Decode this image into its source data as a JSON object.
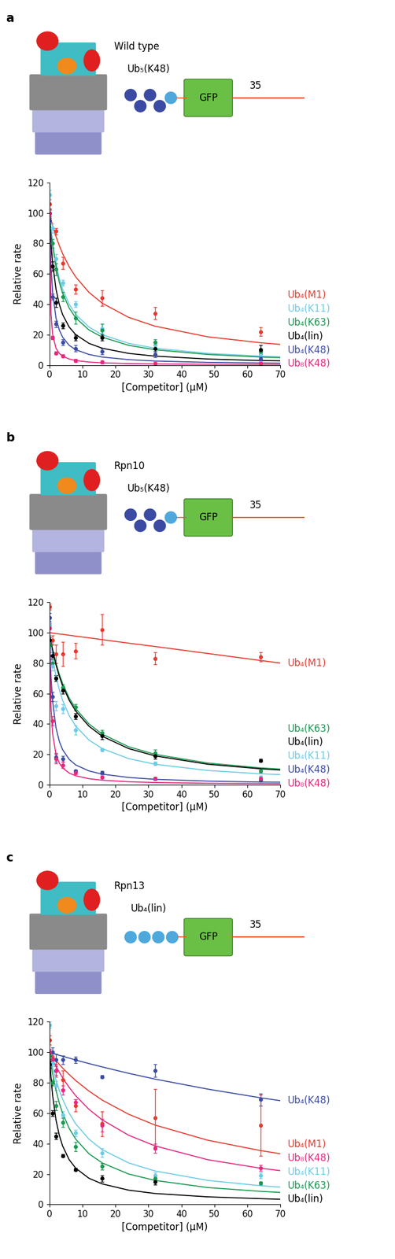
{
  "chart_data": [
    {
      "type": "scatter",
      "panel": "a",
      "proteasome": "Wild type",
      "substrate": "Ub₅(K48)",
      "reporter": "GFP",
      "tail": 35,
      "x_label": "[Competitor] (μM)",
      "y_label": "Relative rate",
      "xlim": [
        0,
        70
      ],
      "ylim": [
        0,
        120
      ],
      "xticks": [
        0,
        10,
        20,
        30,
        40,
        50,
        60,
        70
      ],
      "yticks": [
        0,
        20,
        40,
        60,
        80,
        100,
        120
      ],
      "x": [
        0,
        1,
        2,
        4,
        8,
        16,
        32,
        64
      ],
      "fit_x": [
        0,
        0.5,
        1,
        2,
        3,
        4,
        6,
        8,
        12,
        16,
        24,
        32,
        48,
        64,
        70
      ],
      "series": [
        {
          "name": "Ub₄(M1)",
          "color": "#e63a2e",
          "values": [
            106,
            null,
            88,
            67,
            50,
            44,
            34,
            22
          ],
          "errors": [
            3,
            null,
            2,
            4,
            3,
            5,
            4,
            3
          ],
          "fit": [
            100,
            95.7,
            91.7,
            84.6,
            78.6,
            73.3,
            64.7,
            57.9,
            47.8,
            40.7,
            31.4,
            25.6,
            18.6,
            14.7,
            13.6
          ]
        },
        {
          "name": "Ub₄(K11)",
          "color": "#6dcbe6",
          "values": [
            112,
            90,
            70,
            54,
            40,
            24,
            13,
            8
          ],
          "errors": [
            3,
            3,
            3,
            2,
            2,
            3,
            2,
            2
          ],
          "fit": [
            100,
            88.9,
            80,
            66.7,
            57.1,
            50,
            40,
            33.3,
            25,
            20,
            14.3,
            11.1,
            7.7,
            5.9,
            5.4
          ]
        },
        {
          "name": "Ub₄(K63)",
          "color": "#1a9850",
          "values": [
            100,
            80,
            63,
            45,
            31,
            23,
            15,
            9
          ],
          "errors": [
            3,
            3,
            4,
            3,
            4,
            4,
            2,
            2
          ],
          "fit": [
            100,
            87.8,
            78.3,
            64.3,
            54.5,
            47.4,
            37.5,
            31,
            23.1,
            18.4,
            13.0,
            10.1,
            7.0,
            5.3,
            4.9
          ]
        },
        {
          "name": "Ub₄(lin)",
          "color": "#000000",
          "values": [
            100,
            65,
            41,
            26,
            18,
            18,
            11,
            10
          ],
          "errors": [
            2,
            3,
            3,
            2,
            2,
            2,
            2,
            3
          ],
          "fit": [
            100,
            80,
            66.7,
            50,
            40,
            33.3,
            25,
            20,
            14.3,
            11.1,
            7.7,
            5.9,
            4.0,
            3.0,
            2.8
          ]
        },
        {
          "name": "Ub₄(K48)",
          "color": "#3b4ba3",
          "values": [
            95,
            45,
            27,
            15,
            11,
            9,
            7,
            4
          ],
          "errors": [
            2,
            2,
            2,
            2,
            2,
            2,
            2,
            1
          ],
          "fit": [
            100,
            64.3,
            47.4,
            31.0,
            23.1,
            18.4,
            13.0,
            10.1,
            7.0,
            5.3,
            3.6,
            2.7,
            1.8,
            1.4,
            1.3
          ]
        },
        {
          "name": "Ub₈(K48)",
          "color": "#e6287f",
          "values": [
            100,
            18,
            8,
            6,
            3,
            2,
            1,
            1
          ],
          "errors": [
            2,
            1,
            1,
            1,
            1,
            1,
            1,
            1
          ],
          "fit": [
            100,
            33.3,
            20,
            11.1,
            7.7,
            5.9,
            4.0,
            3.0,
            2.0,
            1.5,
            1.0,
            0.8,
            0.5,
            0.4,
            0.4
          ]
        }
      ]
    },
    {
      "type": "scatter",
      "panel": "b",
      "proteasome": "Rpn10",
      "substrate": "Ub₅(K48)",
      "reporter": "GFP",
      "tail": 35,
      "x_label": "[Competitor] (μM)",
      "y_label": "Relative rate",
      "xlim": [
        0,
        70
      ],
      "ylim": [
        0,
        120
      ],
      "xticks": [
        0,
        10,
        20,
        30,
        40,
        50,
        60,
        70
      ],
      "yticks": [
        0,
        20,
        40,
        60,
        80,
        100,
        120
      ],
      "x": [
        0,
        1,
        2,
        4,
        8,
        16,
        32,
        64
      ],
      "fit_x": [
        0,
        0.5,
        1,
        2,
        3,
        4,
        6,
        8,
        12,
        16,
        24,
        32,
        48,
        64,
        70
      ],
      "series": [
        {
          "name": "Ub₄(M1)",
          "color": "#e63a2e",
          "values": [
            117,
            95,
            86,
            86,
            88,
            102,
            83,
            84
          ],
          "errors": [
            2,
            3,
            6,
            8,
            5,
            10,
            4,
            3
          ],
          "fit": [
            100,
            99.9,
            99.7,
            99.4,
            99.1,
            98.9,
            98.3,
            97.7,
            96.6,
            95.4,
            93.1,
            90.9,
            86.3,
            81.7,
            80
          ]
        },
        {
          "name": "Ub₄(K63)",
          "color": "#1a9850",
          "values": [
            92,
            80,
            70,
            64,
            51,
            34,
            21,
            9
          ],
          "errors": [
            2,
            2,
            2,
            2,
            2,
            2,
            2,
            1
          ],
          "fit": [
            100,
            94.1,
            88.9,
            80,
            72.7,
            66.7,
            57.1,
            50,
            40,
            33.3,
            25,
            20,
            14.3,
            11.1,
            10.3
          ]
        },
        {
          "name": "Ub₄(lin)",
          "color": "#000000",
          "values": [
            95,
            85,
            70,
            62,
            45,
            32,
            19,
            16
          ],
          "errors": [
            2,
            2,
            2,
            2,
            2,
            2,
            2,
            1
          ],
          "fit": [
            100,
            93.8,
            88.2,
            78.9,
            71.4,
            65.2,
            55.6,
            48.4,
            38.5,
            31.9,
            23.8,
            19.0,
            13.5,
            10.5,
            9.7
          ]
        },
        {
          "name": "Ub₄(K11)",
          "color": "#6dcbe6",
          "values": [
            105,
            78,
            52,
            50,
            36,
            23,
            14,
            5
          ],
          "errors": [
            3,
            3,
            3,
            3,
            3,
            1,
            1,
            1
          ],
          "fit": [
            100,
            90.9,
            83.3,
            71.4,
            62.5,
            55.6,
            45.5,
            38.5,
            29.4,
            23.8,
            17.2,
            13.5,
            9.4,
            7.2,
            6.7
          ]
        },
        {
          "name": "Ub₄(K48)",
          "color": "#3b4ba3",
          "values": [
            110,
            58,
            18,
            17,
            9,
            8,
            4,
            3
          ],
          "errors": [
            3,
            3,
            3,
            2,
            1,
            1,
            1,
            1
          ],
          "fit": [
            100,
            70.6,
            54.5,
            37.5,
            28.6,
            23.1,
            16.7,
            13.0,
            9.1,
            7.0,
            4.8,
            3.6,
            2.4,
            1.8,
            1.7
          ]
        },
        {
          "name": "Ub₈(K48)",
          "color": "#e6287f",
          "values": [
            103,
            42,
            17,
            13,
            8,
            5,
            4,
            4
          ],
          "errors": [
            3,
            3,
            3,
            2,
            1,
            1,
            1,
            1
          ],
          "fit": [
            100,
            50,
            33.3,
            20,
            14.3,
            11.1,
            7.7,
            5.9,
            4.0,
            3.0,
            2.0,
            1.5,
            1.0,
            0.8,
            0.7
          ]
        }
      ]
    },
    {
      "type": "scatter",
      "panel": "c",
      "proteasome": "Rpn13",
      "substrate": "Ub₄(lin)",
      "reporter": "GFP",
      "tail": 35,
      "x_label": "[Competitor] (μM)",
      "y_label": "Relative rate",
      "xlim": [
        0,
        70
      ],
      "ylim": [
        0,
        120
      ],
      "xticks": [
        0,
        10,
        20,
        30,
        40,
        50,
        60,
        70
      ],
      "yticks": [
        0,
        20,
        40,
        60,
        80,
        100,
        120
      ],
      "x": [
        0,
        1,
        2,
        4,
        8,
        16,
        32,
        64
      ],
      "fit_x": [
        0,
        0.5,
        1,
        2,
        3,
        4,
        6,
        8,
        12,
        16,
        24,
        32,
        48,
        64,
        70
      ],
      "series": [
        {
          "name": "Ub₄(K48)",
          "color": "#3b4ba3",
          "values": [
            100,
            100,
            95,
            95,
            95,
            84,
            88,
            69
          ],
          "errors": [
            2,
            3,
            4,
            3,
            2,
            1,
            4,
            4
          ],
          "fit": [
            100,
            99.7,
            99.3,
            98.7,
            98.0,
            97.4,
            96.2,
            94.9,
            92.6,
            90.4,
            86.2,
            82.4,
            75.8,
            70.1,
            68.2
          ]
        },
        {
          "name": "Ub₄(M1)",
          "color": "#e63a2e",
          "values": [
            108,
            95,
            88,
            82,
            65,
            53,
            57,
            52
          ],
          "errors": [
            3,
            3,
            4,
            6,
            4,
            8,
            19,
            20
          ],
          "fit": [
            100,
            98.6,
            97.2,
            94.6,
            92.1,
            89.7,
            85.4,
            81.4,
            74.5,
            68.6,
            59.3,
            52.2,
            42.2,
            35.4,
            33.3
          ]
        },
        {
          "name": "Ub₈(K48)",
          "color": "#e6287f",
          "values": [
            100,
            95,
            88,
            75,
            67,
            52,
            37,
            24
          ],
          "errors": [
            2,
            2,
            3,
            3,
            2,
            4,
            3,
            2
          ],
          "fit": [
            100,
            97.6,
            95.2,
            90.9,
            87.0,
            83.3,
            76.9,
            71.4,
            62.5,
            55.6,
            45.5,
            38.5,
            29.4,
            23.8,
            22.2
          ]
        },
        {
          "name": "Ub₄(K11)",
          "color": "#6dcbe6",
          "values": [
            118,
            93,
            78,
            59,
            47,
            34,
            19,
            19
          ],
          "errors": [
            2,
            2,
            3,
            2,
            2,
            3,
            2,
            2
          ],
          "fit": [
            100,
            94.7,
            90,
            81.8,
            75,
            69.2,
            60,
            52.9,
            42.9,
            36,
            27.3,
            22,
            15.8,
            12.3,
            11.4
          ]
        },
        {
          "name": "Ub₄(K63)",
          "color": "#1a9850",
          "values": [
            98,
            80,
            65,
            54,
            38,
            25,
            17,
            14
          ],
          "errors": [
            2,
            2,
            3,
            3,
            3,
            2,
            2,
            1
          ],
          "fit": [
            100,
            92.3,
            85.7,
            75,
            66.7,
            60,
            50,
            42.9,
            33.3,
            27.3,
            20,
            15.8,
            11.1,
            8.6,
            7.9
          ]
        },
        {
          "name": "Ub₄(lin)",
          "color": "#000000",
          "values": [
            92,
            60,
            45,
            32,
            23,
            17,
            15,
            null
          ],
          "errors": [
            2,
            2,
            2,
            1,
            1,
            2,
            2,
            null
          ],
          "fit": [
            100,
            83.3,
            71.4,
            55.6,
            45.5,
            38.5,
            29.4,
            23.8,
            17.2,
            13.5,
            9.4,
            7.2,
            5.0,
            3.8,
            3.4
          ]
        }
      ]
    }
  ]
}
